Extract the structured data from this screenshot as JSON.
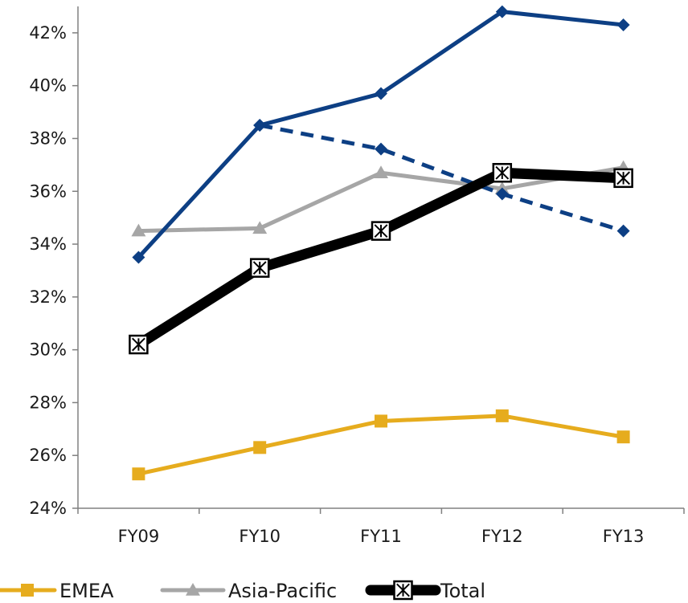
{
  "chart_data": {
    "type": "line",
    "categories": [
      "FY09",
      "FY10",
      "FY11",
      "FY12",
      "FY13"
    ],
    "ylim": [
      0.24,
      0.43
    ],
    "yticks": [
      0.24,
      0.26,
      0.28,
      0.3,
      0.32,
      0.34,
      0.36,
      0.38,
      0.4,
      0.42
    ],
    "ytick_labels": [
      "24%",
      "26%",
      "28%",
      "30%",
      "32%",
      "34%",
      "36%",
      "38%",
      "40%",
      "42%"
    ],
    "series": [
      {
        "name": "",
        "values": [
          0.335,
          0.385,
          0.397,
          0.428,
          0.423
        ],
        "color": "#0d3f84",
        "marker": "diamond",
        "dash": "solid",
        "in_legend": false
      },
      {
        "name": "",
        "values": [
          null,
          0.385,
          0.376,
          0.359,
          0.345
        ],
        "color": "#0d3f84",
        "marker": "diamond",
        "dash": "dashed",
        "in_legend": false
      },
      {
        "name": "Asia-Pacific",
        "values": [
          0.345,
          0.346,
          0.367,
          0.361,
          0.369
        ],
        "color": "#a6a6a6",
        "marker": "triangle",
        "dash": "solid",
        "in_legend": true
      },
      {
        "name": "EMEA",
        "values": [
          0.253,
          0.263,
          0.273,
          0.275,
          0.267
        ],
        "color": "#e6ac1e",
        "marker": "square",
        "dash": "solid",
        "in_legend": true
      },
      {
        "name": "Total",
        "values": [
          0.302,
          0.331,
          0.345,
          0.367,
          0.365
        ],
        "color": "#000000",
        "marker": "x-square",
        "dash": "solid",
        "in_legend": true
      }
    ],
    "legend_order": [
      "EMEA",
      "Asia-Pacific",
      "Total"
    ],
    "legend_position": "bottom",
    "grid": false
  }
}
